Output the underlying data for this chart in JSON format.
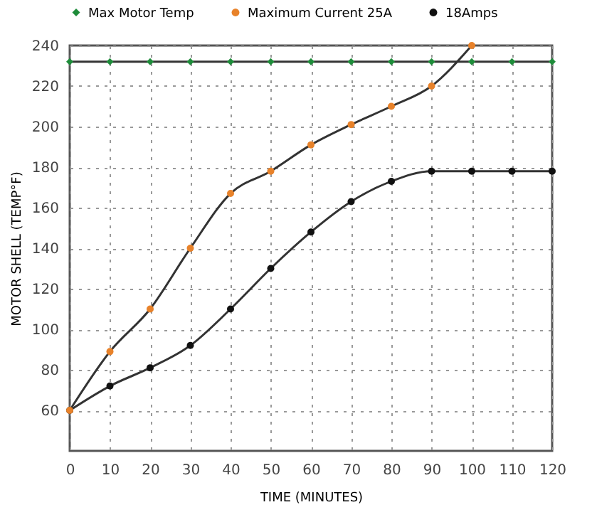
{
  "chart_data": {
    "type": "line",
    "xlabel": "TIME (MINUTES)",
    "ylabel": "MOTOR SHELL (TEMP°F)",
    "x": [
      0,
      10,
      20,
      30,
      40,
      50,
      60,
      70,
      80,
      90,
      100,
      110,
      120
    ],
    "series": [
      {
        "name": "Max Motor Temp",
        "color": "#1e8c3a",
        "marker": "diamond",
        "values": [
          232,
          232,
          232,
          232,
          232,
          232,
          232,
          232,
          232,
          232,
          232,
          232,
          232
        ]
      },
      {
        "name": "Maximum Current 25A",
        "color": "#e8822a",
        "marker": "circle",
        "values": [
          60,
          89,
          110,
          140,
          167,
          178,
          191,
          201,
          210,
          220,
          240,
          null,
          null
        ]
      },
      {
        "name": "18Amps",
        "color": "#111111",
        "marker": "circle",
        "values": [
          60,
          72,
          81,
          92,
          110,
          130,
          148,
          163,
          173,
          178,
          178,
          178,
          178
        ]
      }
    ],
    "xlim": [
      0,
      120
    ],
    "xticks": [
      0,
      10,
      20,
      30,
      40,
      50,
      60,
      70,
      80,
      90,
      100,
      110,
      120
    ],
    "ylim": [
      40,
      240
    ],
    "yticks": [
      60,
      80,
      100,
      120,
      140,
      160,
      180,
      200,
      220,
      240
    ],
    "grid": true,
    "legend": "top",
    "line_style": "solid"
  }
}
